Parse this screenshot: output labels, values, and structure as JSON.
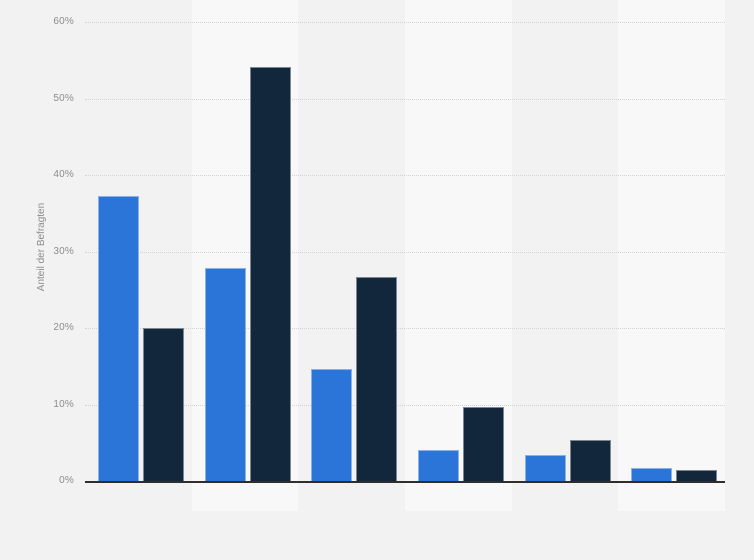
{
  "chart_data": {
    "type": "bar",
    "title": "",
    "xlabel": "",
    "ylabel": "Anteil der Befragten",
    "categories": [
      "",
      "",
      "",
      "",
      "",
      ""
    ],
    "series": [
      {
        "name": "series-1",
        "color": "#2b74d8",
        "values": [
          37.3,
          27.8,
          14.6,
          4.1,
          3.4,
          1.7
        ]
      },
      {
        "name": "series-2",
        "color": "#12263c",
        "values": [
          20.0,
          54.1,
          26.7,
          9.7,
          5.3,
          1.4
        ]
      }
    ],
    "ylim": [
      0,
      60
    ],
    "ytick_step": 10,
    "yticks": [
      "0%",
      "10%",
      "20%",
      "30%",
      "40%",
      "50%",
      "60%"
    ],
    "grid": "horizontal-dotted",
    "legend": "none"
  },
  "palette": {
    "background": "#f2f2f2",
    "stripe_alt": "#f8f8f9",
    "gridline": "#d2d2d2",
    "axis_line": "#2e2e2e",
    "tick_text": "#8c8c8c"
  }
}
